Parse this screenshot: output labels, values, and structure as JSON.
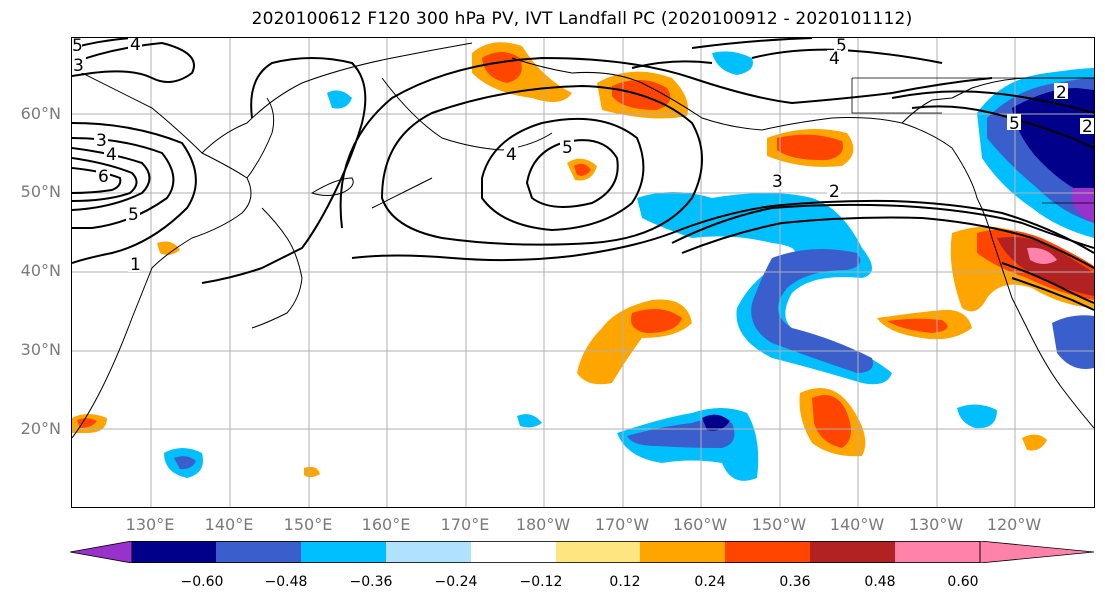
{
  "title": "2020100612 F120 300 hPa PV, IVT Landfall PC (2020100912 - 2020101112)",
  "lat_labels": [
    "60°N",
    "50°N",
    "40°N",
    "30°N",
    "20°N"
  ],
  "lon_labels": [
    "130°E",
    "140°E",
    "150°E",
    "160°E",
    "170°E",
    "180°W",
    "170°W",
    "160°W",
    "150°W",
    "140°W",
    "130°W",
    "120°W"
  ],
  "contour_labels": [
    "5",
    "4",
    "3",
    "3",
    "4",
    "6",
    "5",
    "1",
    "5",
    "4",
    "3",
    "2",
    "5",
    "4",
    "2",
    "5",
    "2"
  ],
  "colorbar": {
    "tick_labels": [
      "−0.60",
      "−0.48",
      "−0.36",
      "−0.24",
      "−0.12",
      "0.12",
      "0.24",
      "0.36",
      "0.48",
      "0.60"
    ],
    "colors": [
      "#9932cc",
      "#00008b",
      "#3a5fcd",
      "#00bfff",
      "#b0e2ff",
      "#ffffff",
      "#ffe57f",
      "#ffa500",
      "#ff4500",
      "#b22222",
      "#ff82ab"
    ]
  },
  "colors": {
    "purple": "#9932cc",
    "navy": "#00008b",
    "blue": "#3a5fcd",
    "sky": "#00bfff",
    "light_sky": "#b0e2ff",
    "pale_yellow": "#ffe57f",
    "orange": "#ffa500",
    "red_orange": "#ff4500",
    "firebrick": "#b22222",
    "pink": "#ff82ab",
    "grid": "#b0b0b0",
    "axis_text": "#7a7a7a"
  }
}
